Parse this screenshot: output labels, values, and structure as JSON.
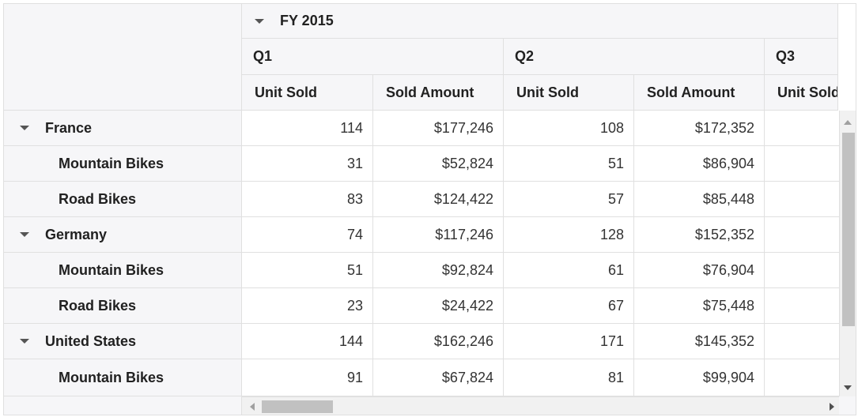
{
  "header": {
    "year": "FY 2015",
    "quarters": [
      "Q1",
      "Q2",
      "Q3"
    ],
    "measures": [
      "Unit Sold",
      "Sold Amount",
      "Unit Sold",
      "Sold Amount",
      "Unit Sold"
    ]
  },
  "rows": [
    {
      "label": "France",
      "type": "parent",
      "values": [
        "114",
        "$177,246",
        "108",
        "$172,352",
        ""
      ]
    },
    {
      "label": "Mountain Bikes",
      "type": "child",
      "values": [
        "31",
        "$52,824",
        "51",
        "$86,904",
        ""
      ]
    },
    {
      "label": "Road Bikes",
      "type": "child",
      "values": [
        "83",
        "$124,422",
        "57",
        "$85,448",
        ""
      ]
    },
    {
      "label": "Germany",
      "type": "parent",
      "values": [
        "74",
        "$117,246",
        "128",
        "$152,352",
        ""
      ]
    },
    {
      "label": "Mountain Bikes",
      "type": "child",
      "values": [
        "51",
        "$92,824",
        "61",
        "$76,904",
        ""
      ]
    },
    {
      "label": "Road Bikes",
      "type": "child",
      "values": [
        "23",
        "$24,422",
        "67",
        "$75,448",
        ""
      ]
    },
    {
      "label": "United States",
      "type": "parent",
      "values": [
        "144",
        "$162,246",
        "171",
        "$145,352",
        ""
      ]
    },
    {
      "label": "Mountain Bikes",
      "type": "child",
      "values": [
        "91",
        "$67,824",
        "81",
        "$99,904",
        ""
      ]
    }
  ]
}
